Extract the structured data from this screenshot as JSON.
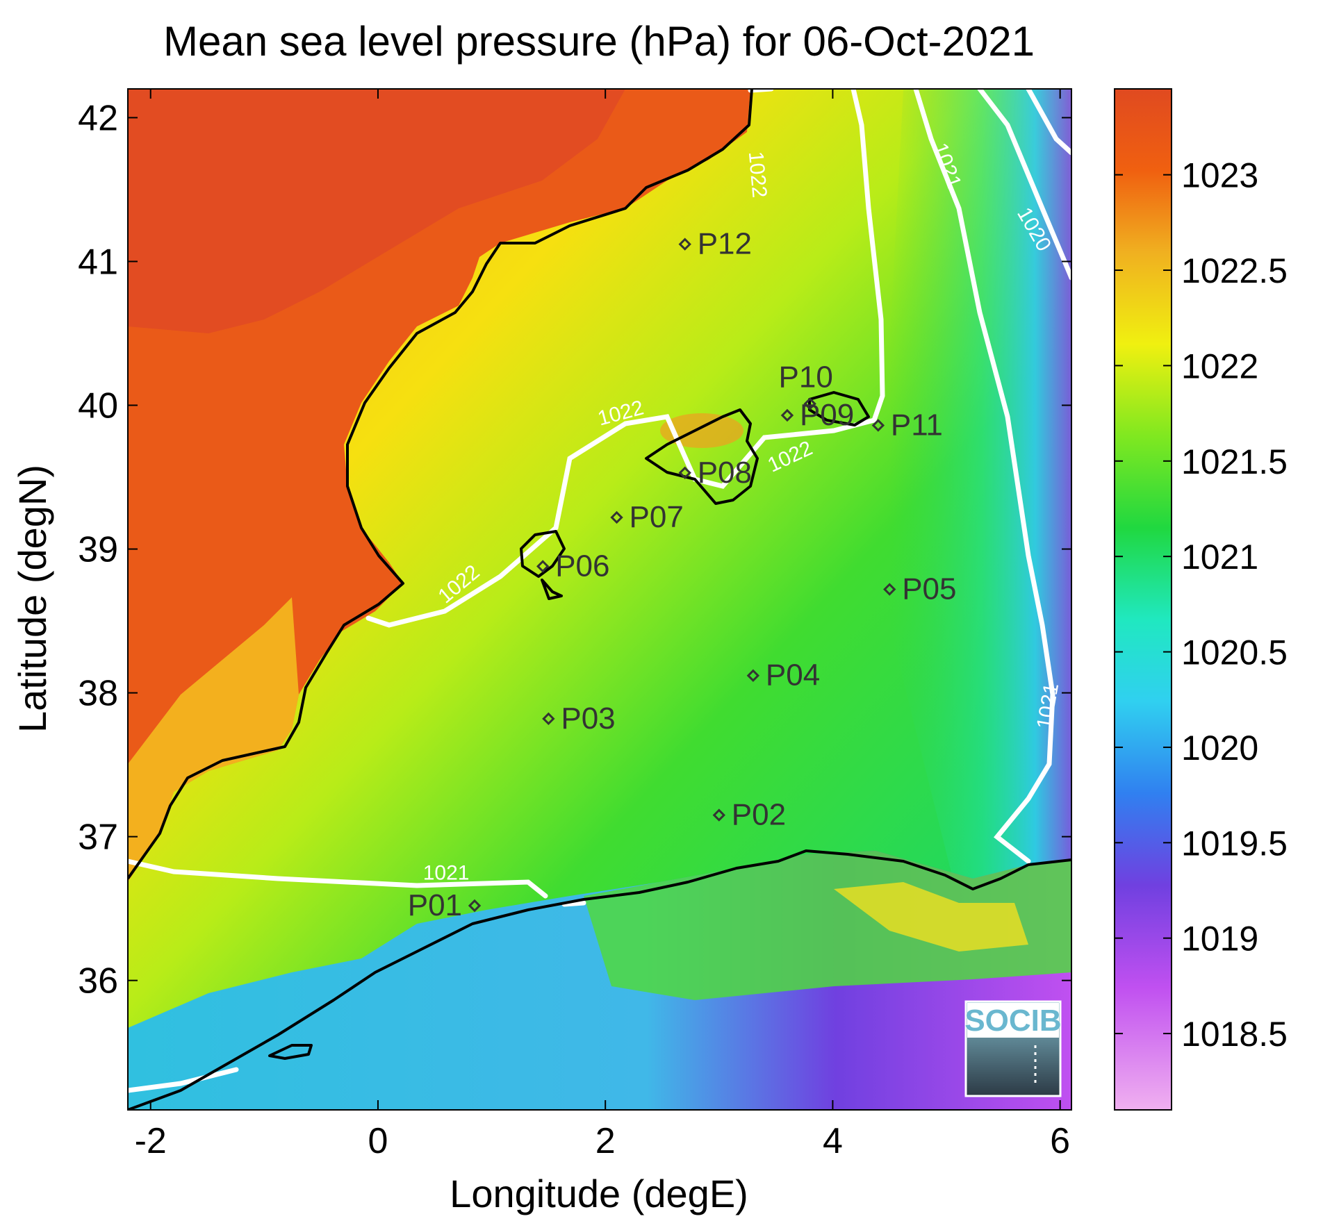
{
  "figure": {
    "title": "Mean sea level pressure (hPa) for 06-Oct-2021",
    "xlabel": "Longitude (degE)",
    "ylabel": "Latitude (degN)",
    "logo_text": "SOCIB"
  },
  "map": {
    "lon_range": [
      -2.2,
      6.1
    ],
    "lat_range": [
      35.1,
      42.2
    ],
    "x_ticks": [
      -2,
      0,
      2,
      4,
      6
    ],
    "y_ticks": [
      36,
      37,
      38,
      39,
      40,
      41,
      42
    ],
    "colorbar": {
      "range": [
        1018.1,
        1023.45
      ],
      "ticks": [
        1018.5,
        1019,
        1019.5,
        1020,
        1020.5,
        1021,
        1021.5,
        1022,
        1022.5,
        1023
      ],
      "tick_labels": [
        "1018.5",
        "1019",
        "1019.5",
        "1020",
        "1020.5",
        "1021",
        "1021.5",
        "1022",
        "1022.5",
        "1023"
      ],
      "colormap": [
        "#f0a0f0",
        "#c050f0",
        "#7040e0",
        "#3080f0",
        "#30d0f0",
        "#20e8c0",
        "#20d840",
        "#80e820",
        "#f0f010",
        "#f0b020",
        "#f05010",
        "#e04a20"
      ]
    },
    "stations": [
      {
        "id": "P01",
        "lon": 0.85,
        "lat": 36.52
      },
      {
        "id": "P02",
        "lon": 3.0,
        "lat": 37.15
      },
      {
        "id": "P03",
        "lon": 1.5,
        "lat": 37.82
      },
      {
        "id": "P04",
        "lon": 3.3,
        "lat": 38.12
      },
      {
        "id": "P05",
        "lon": 4.5,
        "lat": 38.72
      },
      {
        "id": "P06",
        "lon": 1.45,
        "lat": 38.88
      },
      {
        "id": "P07",
        "lon": 2.1,
        "lat": 39.22
      },
      {
        "id": "P08",
        "lon": 2.7,
        "lat": 39.53
      },
      {
        "id": "P09",
        "lon": 3.6,
        "lat": 39.93
      },
      {
        "id": "P10",
        "lon": 3.8,
        "lat": 40.01
      },
      {
        "id": "P11",
        "lon": 4.4,
        "lat": 39.86
      },
      {
        "id": "P12",
        "lon": 2.7,
        "lat": 41.12
      }
    ],
    "contour_labels": [
      {
        "text": "1022",
        "lon": 3.28,
        "lat": 41.6,
        "angle": 85
      },
      {
        "text": "1021",
        "lon": 4.95,
        "lat": 41.65,
        "angle": 70
      },
      {
        "text": "1020",
        "lon": 5.72,
        "lat": 41.2,
        "angle": 60
      },
      {
        "text": "1022",
        "lon": 2.15,
        "lat": 39.9,
        "angle": -15
      },
      {
        "text": "1022",
        "lon": 3.65,
        "lat": 39.6,
        "angle": -25
      },
      {
        "text": "1022",
        "lon": 0.75,
        "lat": 38.72,
        "angle": -40
      },
      {
        "text": "1021",
        "lon": 5.95,
        "lat": 37.9,
        "angle": -80
      },
      {
        "text": "1021",
        "lon": 0.6,
        "lat": 36.7,
        "angle": 0
      }
    ]
  }
}
